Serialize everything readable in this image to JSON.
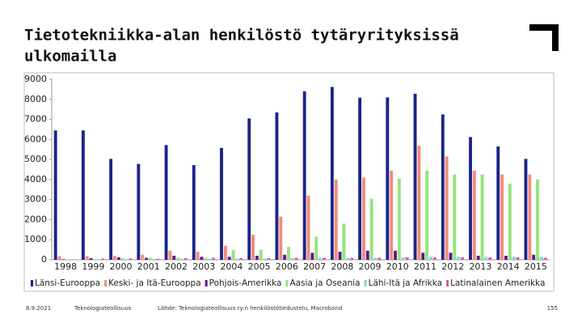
{
  "chart_data": {
    "type": "bar",
    "title": [
      "Tietotekniikka-alan henkilöstö tytäryrityksissä",
      "ulkomailla"
    ],
    "categories": [
      "1998",
      "1999",
      "2000",
      "2001",
      "2002",
      "2003",
      "2004",
      "2005",
      "2006",
      "2007",
      "2008",
      "2009",
      "2010",
      "2011",
      "2012",
      "2013",
      "2014",
      "2015"
    ],
    "series": [
      {
        "name": "Länsi-Eurooppa",
        "color": "#1c2489",
        "values": [
          6450,
          6450,
          5030,
          4780,
          5720,
          4720,
          5580,
          7050,
          7350,
          8400,
          8620,
          8080,
          8100,
          8280,
          7250,
          6120,
          5650,
          5030
        ]
      },
      {
        "name": "Keski- ja Itä-Eurooppa",
        "color": "#f28b79",
        "values": [
          180,
          180,
          200,
          250,
          450,
          400,
          700,
          1250,
          2150,
          3200,
          4000,
          4100,
          4450,
          5680,
          5150,
          4450,
          4250,
          4250
        ]
      },
      {
        "name": "Pohjois-Amerikka",
        "color": "#5e1690",
        "values": [
          30,
          80,
          120,
          100,
          200,
          150,
          150,
          200,
          250,
          350,
          400,
          450,
          450,
          350,
          350,
          200,
          200,
          250
        ]
      },
      {
        "name": "Aasia ja Oseania",
        "color": "#93e47c",
        "values": [
          20,
          30,
          80,
          100,
          100,
          100,
          480,
          500,
          650,
          1150,
          1800,
          3050,
          4050,
          4450,
          4250,
          4250,
          3800,
          4000
        ]
      },
      {
        "name": "Lähi-Itä ja Afrikka",
        "color": "#80d8d8",
        "values": [
          10,
          20,
          30,
          50,
          50,
          50,
          60,
          60,
          80,
          100,
          100,
          100,
          120,
          150,
          150,
          150,
          150,
          150
        ]
      },
      {
        "name": "Latinalainen Amerikka",
        "color": "#e850a8",
        "values": [
          10,
          60,
          70,
          50,
          80,
          100,
          80,
          80,
          100,
          100,
          100,
          100,
          120,
          120,
          120,
          120,
          120,
          100
        ]
      }
    ],
    "ylim": [
      0,
      9000
    ],
    "yticks": [
      0,
      1000,
      2000,
      3000,
      4000,
      5000,
      6000,
      7000,
      8000,
      9000
    ],
    "grid": false,
    "legend": "bottom"
  },
  "footer": {
    "date": "8.9.2021",
    "org": "Teknologiateollisuus",
    "source": "Lähde: Teknologiateollisuus ry:n henkilöstötiedustelu, Macrobond",
    "page": "155"
  }
}
